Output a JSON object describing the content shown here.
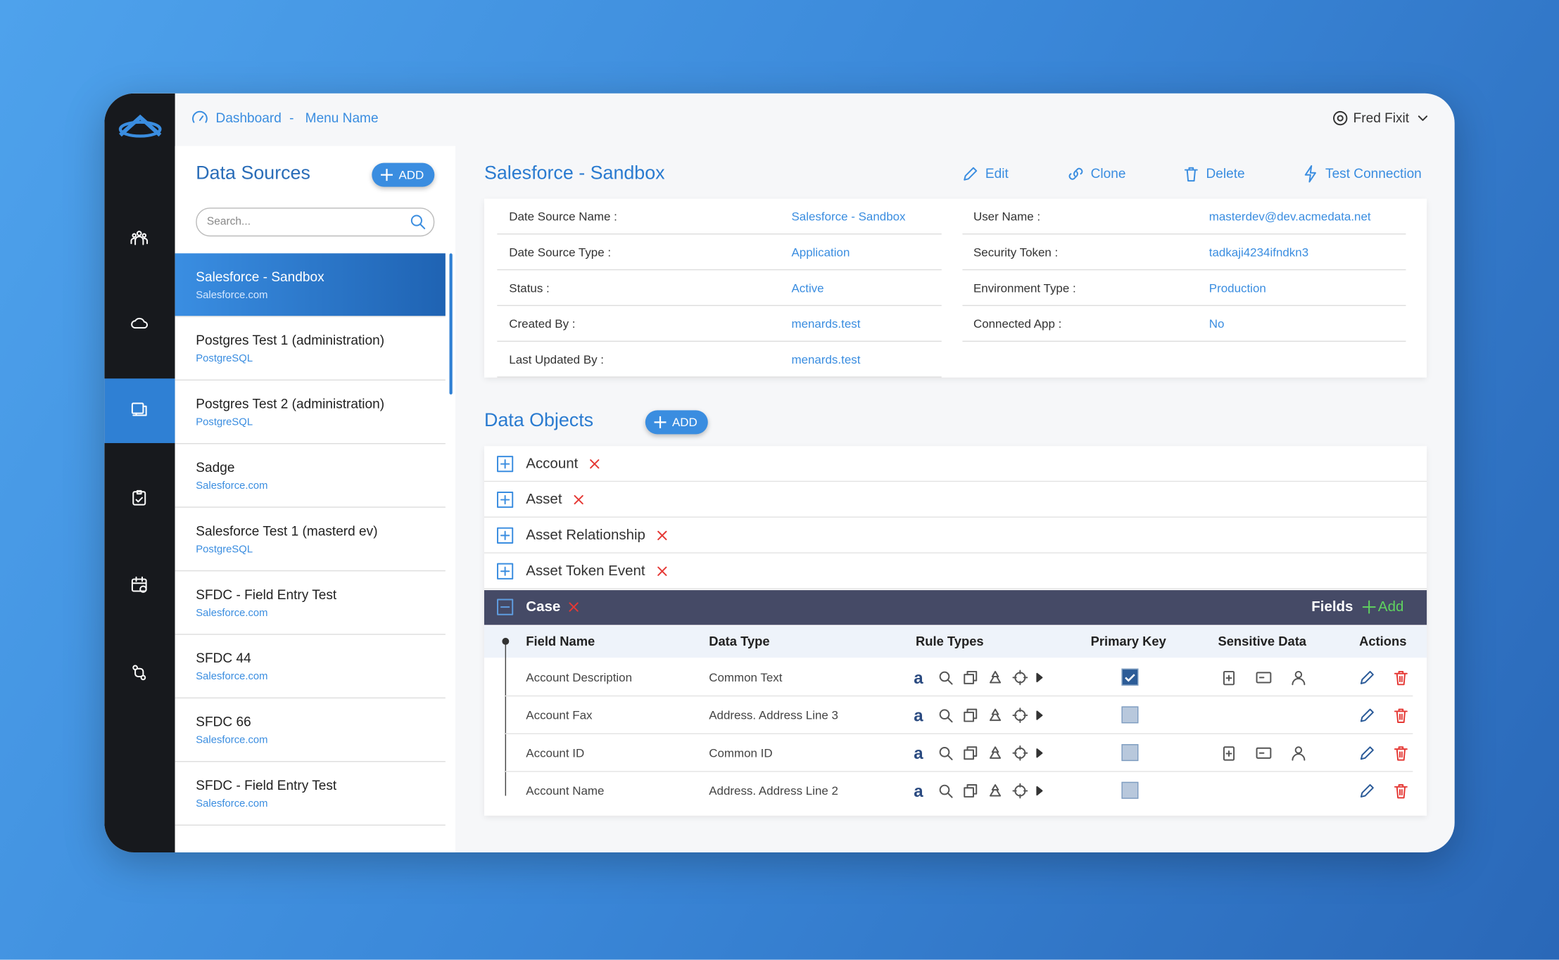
{
  "breadcrumb": [
    "Dashboard",
    "Menu Name"
  ],
  "user": "Fred Fixit",
  "sources": {
    "title": "Data Sources",
    "add": "ADD",
    "search": "Search...",
    "items": [
      {
        "name": "Salesforce - Sandbox",
        "type": "Salesforce.com"
      },
      {
        "name": "Postgres Test 1 (administration)",
        "type": "PostgreSQL"
      },
      {
        "name": "Postgres Test 2 (administration)",
        "type": "PostgreSQL"
      },
      {
        "name": "Sadge",
        "type": "Salesforce.com"
      },
      {
        "name": "Salesforce Test 1 (masterd ev)",
        "type": "PostgreSQL"
      },
      {
        "name": "SFDC - Field Entry Test",
        "type": "Salesforce.com"
      },
      {
        "name": "SFDC 44",
        "type": "Salesforce.com"
      },
      {
        "name": "SFDC 66",
        "type": "Salesforce.com"
      },
      {
        "name": "SFDC - Field Entry Test",
        "type": "Salesforce.com"
      }
    ]
  },
  "detail": {
    "title": "Salesforce - Sandbox",
    "actions": [
      "Edit",
      "Clone",
      "Delete",
      "Test Connection"
    ],
    "left": [
      {
        "label": "Date Source Name :",
        "value": "Salesforce - Sandbox"
      },
      {
        "label": "Date Source Type :",
        "value": "Application"
      },
      {
        "label": "Status :",
        "value": "Active"
      },
      {
        "label": "Created By :",
        "value": "menards.test"
      },
      {
        "label": "Last Updated By :",
        "value": "menards.test"
      }
    ],
    "right": [
      {
        "label": "User Name :",
        "value": "masterdev@dev.acmedata.net"
      },
      {
        "label": "Security Token :",
        "value": "tadkaji4234ifndkn3"
      },
      {
        "label": "Environment Type :",
        "value": "Production"
      },
      {
        "label": "Connected App :",
        "value": "No"
      }
    ]
  },
  "objects": {
    "title": "Data Objects",
    "add": "ADD",
    "items": [
      "Account",
      "Asset",
      "Asset Relationship",
      "Asset Token Event"
    ],
    "open": "Case",
    "fields_label": "Fields",
    "fields_add": "Add",
    "columns": [
      "Field Name",
      "Data Type",
      "Rule Types",
      "Primary Key",
      "Sensitive Data",
      "Actions"
    ],
    "rows": [
      {
        "name": "Account Description",
        "type": "Common Text",
        "primary": true,
        "sensitive": true
      },
      {
        "name": "Account Fax",
        "type": "Address. Address Line 3",
        "primary": false,
        "sensitive": false
      },
      {
        "name": "Account ID",
        "type": "Common ID",
        "primary": false,
        "sensitive": true
      },
      {
        "name": "Account Name",
        "type": "Address. Address Line 2",
        "primary": false,
        "sensitive": false
      }
    ]
  }
}
